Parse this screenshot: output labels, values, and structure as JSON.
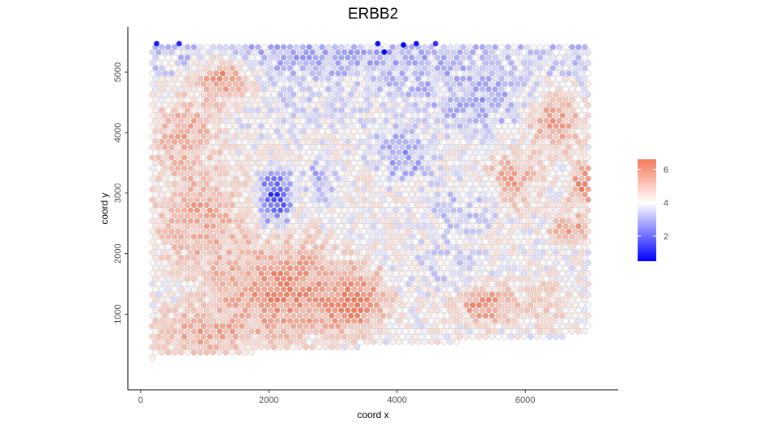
{
  "chart_data": {
    "type": "scatter",
    "title": "ERBB2",
    "xlabel": "coord x",
    "ylabel": "coord y",
    "xlim": [
      -200,
      7450
    ],
    "ylim": [
      -250,
      5750
    ],
    "x_ticks": [
      0,
      2000,
      4000,
      6000
    ],
    "y_ticks": [
      1000,
      2000,
      3000,
      4000,
      5000
    ],
    "grid": false,
    "legend": {
      "placement": "right",
      "type": "colorbar",
      "ticks": [
        2,
        4,
        6
      ],
      "range": [
        0.5,
        6.6
      ],
      "colors": {
        "low": "#0000ff",
        "mid": "#ffffff",
        "high": "#f4795a"
      },
      "midpoint": 4
    },
    "spot_grid": {
      "x_range": [
        180,
        7000
      ],
      "y_bottom_left": 280,
      "y_bottom_right": 650,
      "y_top": 5470,
      "x_spacing": 100,
      "y_spacing": 87
    },
    "expression_regions": [
      {
        "x": 1300,
        "y": 4900,
        "rx": 500,
        "ry": 500,
        "value": 6.0
      },
      {
        "x": 700,
        "y": 4000,
        "rx": 650,
        "ry": 800,
        "value": 5.4
      },
      {
        "x": 900,
        "y": 2600,
        "rx": 800,
        "ry": 900,
        "value": 5.6
      },
      {
        "x": 2200,
        "y": 1400,
        "rx": 1300,
        "ry": 900,
        "value": 6.1
      },
      {
        "x": 3300,
        "y": 1200,
        "rx": 600,
        "ry": 550,
        "value": 6.4
      },
      {
        "x": 1000,
        "y": 700,
        "rx": 900,
        "ry": 450,
        "value": 5.6
      },
      {
        "x": 5400,
        "y": 1150,
        "rx": 500,
        "ry": 350,
        "value": 6.2
      },
      {
        "x": 6200,
        "y": 1200,
        "rx": 650,
        "ry": 400,
        "value": 5.0
      },
      {
        "x": 5800,
        "y": 3200,
        "rx": 450,
        "ry": 500,
        "value": 5.6
      },
      {
        "x": 6500,
        "y": 4200,
        "rx": 500,
        "ry": 600,
        "value": 5.7
      },
      {
        "x": 6900,
        "y": 3100,
        "rx": 250,
        "ry": 500,
        "value": 6.0
      },
      {
        "x": 6700,
        "y": 2400,
        "rx": 350,
        "ry": 250,
        "value": 5.8
      },
      {
        "x": 2100,
        "y": 2950,
        "rx": 300,
        "ry": 500,
        "value": 1.5
      },
      {
        "x": 3000,
        "y": 5250,
        "rx": 1900,
        "ry": 300,
        "value": 3.0
      },
      {
        "x": 4100,
        "y": 3600,
        "rx": 500,
        "ry": 500,
        "value": 2.8
      },
      {
        "x": 2800,
        "y": 3200,
        "rx": 250,
        "ry": 400,
        "value": 2.8
      },
      {
        "x": 5200,
        "y": 4500,
        "rx": 800,
        "ry": 500,
        "value": 3.0
      },
      {
        "x": 4500,
        "y": 4900,
        "rx": 800,
        "ry": 400,
        "value": 3.2
      },
      {
        "x": 4800,
        "y": 1800,
        "rx": 700,
        "ry": 500,
        "value": 3.6
      },
      {
        "x": 5000,
        "y": 2700,
        "rx": 600,
        "ry": 500,
        "value": 3.4
      }
    ],
    "top_edge_low_spots": [
      {
        "x": 250,
        "y": 5470,
        "value": 0.8
      },
      {
        "x": 600,
        "y": 5470,
        "value": 1.0
      },
      {
        "x": 3700,
        "y": 5470,
        "value": 0.7
      },
      {
        "x": 3800,
        "y": 5330,
        "value": 0.6
      },
      {
        "x": 4100,
        "y": 5450,
        "value": 0.6
      },
      {
        "x": 4300,
        "y": 5470,
        "value": 0.8
      },
      {
        "x": 4600,
        "y": 5470,
        "value": 1.2
      }
    ]
  }
}
